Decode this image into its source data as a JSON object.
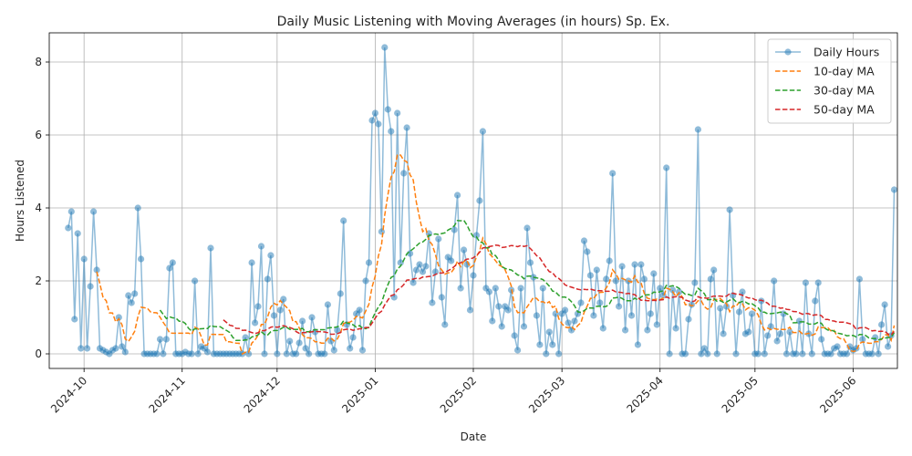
{
  "chart_data": {
    "type": "line",
    "title": "Daily Music Listening with Moving Averages (in hours) Sp. Ex.",
    "xlabel": "Date",
    "ylabel": "Hours Listened",
    "x_start": "2024-09-26",
    "x_ticks": [
      {
        "date": "2024-10-01",
        "label": "2024-10"
      },
      {
        "date": "2024-11-01",
        "label": "2024-11"
      },
      {
        "date": "2024-12-01",
        "label": "2024-12"
      },
      {
        "date": "2025-01-01",
        "label": "2025-01"
      },
      {
        "date": "2025-02-01",
        "label": "2025-02"
      },
      {
        "date": "2025-03-01",
        "label": "2025-03"
      },
      {
        "date": "2025-04-01",
        "label": "2025-04"
      },
      {
        "date": "2025-05-01",
        "label": "2025-05"
      },
      {
        "date": "2025-06-01",
        "label": "2025-06"
      }
    ],
    "y_ticks": [
      0,
      2,
      4,
      6,
      8
    ],
    "ylim": [
      -0.4,
      8.8
    ],
    "xlim": [
      "2024-09-20",
      "2025-06-15"
    ],
    "grid": true,
    "legend_position": "top-right",
    "series": [
      {
        "name": "Daily Hours",
        "color": "#1f77b4",
        "style": "line-markers",
        "values": [
          3.45,
          3.9,
          0.95,
          3.3,
          0.15,
          2.6,
          0.15,
          1.85,
          3.9,
          2.3,
          0.15,
          0.1,
          0.05,
          0.0,
          0.1,
          0.15,
          1.0,
          0.2,
          0.05,
          1.6,
          1.4,
          1.65,
          4.0,
          2.6,
          0.0,
          0.0,
          0.0,
          0.0,
          0.0,
          0.4,
          0.0,
          0.4,
          2.35,
          2.5,
          0.0,
          0.0,
          0.0,
          0.05,
          0.0,
          0.0,
          2.0,
          0.0,
          0.2,
          0.15,
          0.05,
          2.9,
          0.0,
          0.0,
          0.0,
          0.0,
          0.0,
          0.0,
          0.0,
          0.0,
          0.0,
          0.0,
          0.45,
          0.0,
          2.5,
          0.85,
          1.3,
          2.95,
          0.0,
          2.05,
          2.7,
          1.05,
          0.0,
          1.2,
          1.5,
          0.0,
          0.35,
          0.0,
          0.0,
          0.3,
          0.9,
          0.15,
          0.0,
          1.0,
          0.6,
          0.0,
          0.0,
          0.0,
          1.35,
          0.35,
          0.1,
          0.65,
          1.65,
          3.65,
          0.8,
          0.15,
          0.45,
          1.1,
          1.2,
          0.1,
          2.0,
          2.5,
          6.4,
          6.6,
          6.3,
          3.35,
          8.4,
          6.7,
          6.1,
          1.55,
          6.6,
          2.5,
          4.95,
          6.2,
          2.75,
          1.95,
          2.3,
          2.45,
          2.25,
          2.4,
          3.3,
          1.4,
          2.25,
          3.15,
          1.55,
          0.8,
          2.65,
          2.55,
          3.4,
          4.35,
          1.8,
          2.85,
          2.45,
          1.2,
          2.15,
          3.25,
          4.2,
          6.1,
          1.8,
          1.7,
          0.9,
          1.8,
          1.3,
          0.75,
          1.3,
          1.2,
          1.75,
          0.5,
          0.1,
          1.8,
          0.75,
          3.45,
          2.5,
          2.1,
          1.05,
          0.25,
          1.8,
          0.0,
          0.6,
          0.25,
          1.1,
          0.0,
          1.1,
          1.2,
          0.85,
          0.65,
          0.9,
          1.1,
          1.4,
          3.1,
          2.8,
          2.15,
          1.05,
          2.3,
          1.4,
          0.7,
          2.05,
          2.55,
          4.95,
          2.0,
          1.3,
          2.4,
          0.65,
          2.0,
          1.05,
          2.45,
          0.25,
          2.45,
          2.05,
          0.65,
          1.1,
          2.2,
          0.8,
          1.8,
          1.6,
          5.1,
          0.0,
          1.75,
          0.7,
          1.7,
          0.0,
          0.0,
          0.95,
          1.35,
          1.95,
          6.15,
          0.0,
          0.15,
          0.0,
          2.05,
          2.3,
          0.0,
          1.25,
          0.55,
          1.3,
          3.95,
          1.6,
          0.0,
          1.15,
          1.7,
          0.55,
          0.6,
          1.1,
          0.0,
          0.0,
          1.45,
          0.0,
          0.5,
          0.75,
          2.0,
          0.35,
          0.55,
          1.1,
          0.0,
          0.6,
          0.0,
          0.0,
          0.9,
          0.0,
          1.95,
          0.55,
          0.0,
          1.45,
          1.95,
          0.4,
          0.0,
          0.0,
          0.0,
          0.15,
          0.2,
          0.0,
          0.0,
          0.0,
          0.2,
          0.1,
          0.15,
          2.05,
          0.4,
          0.0,
          0.0,
          0.0,
          0.45,
          0.0,
          0.8,
          1.35,
          0.2,
          0.5,
          4.5
        ]
      },
      {
        "name": "10-day MA",
        "color": "#ff7f0e",
        "style": "dashed",
        "window": 10
      },
      {
        "name": "30-day MA",
        "color": "#2ca02c",
        "style": "dashed",
        "window": 30
      },
      {
        "name": "50-day MA",
        "color": "#d62728",
        "style": "dashed",
        "window": 50
      }
    ]
  }
}
